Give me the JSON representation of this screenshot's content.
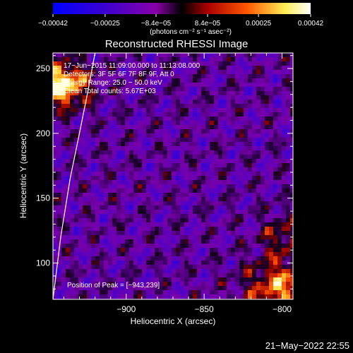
{
  "chart_data": {
    "type": "heatmap",
    "title": "Reconstructed RHESSI Image",
    "xlabel": "Heliocentric X (arcsec)",
    "ylabel": "Heliocentric Y (arcsec)",
    "xlim": [
      -947,
      -793
    ],
    "ylim": [
      72,
      262
    ],
    "x_ticks": [
      -900,
      -850,
      -800
    ],
    "x_tick_labels": [
      "−900",
      "−850",
      "−800"
    ],
    "y_ticks": [
      100,
      150,
      200,
      250
    ],
    "y_tick_labels": [
      "100",
      "150",
      "200",
      "250"
    ],
    "colorbar": {
      "range": [
        -0.00042,
        0.00042
      ],
      "ticks": [
        -0.00042,
        -0.00025,
        -8.4e-05,
        8.4e-05,
        0.00025,
        0.00042
      ],
      "tick_labels": [
        "−0.00042",
        "−0.00025",
        "−8.4e−05",
        "8.4e−05",
        "0.00025",
        "0.00042"
      ],
      "unit_label": "(photons cm⁻² s⁻¹ asec⁻²)",
      "colors": [
        "#0000ff",
        "#4400cc",
        "#8800aa",
        "#000000",
        "#aa0000",
        "#ff6600",
        "#ffff66",
        "#ffffff"
      ]
    },
    "annotations": [
      "17−Jun−2015 11:09:00.000 to 11:13:08.000",
      "Detectors: 3F 5F 6F 7F 8F 9F, Att 0",
      "Energy Range: 25.0 − 50.0 keV",
      "Clean    Total counts: 5.67E+03",
      "Position of Peak = [−943,239]"
    ],
    "peak": {
      "x": -943,
      "y": 239
    },
    "limb_curve": [
      [
        -947,
        72
      ],
      [
        -942,
        120
      ],
      [
        -936,
        165
      ],
      [
        -930,
        200
      ],
      [
        -925,
        230
      ],
      [
        -920,
        262
      ]
    ],
    "timestamp": "21−May−2022 22:55"
  }
}
